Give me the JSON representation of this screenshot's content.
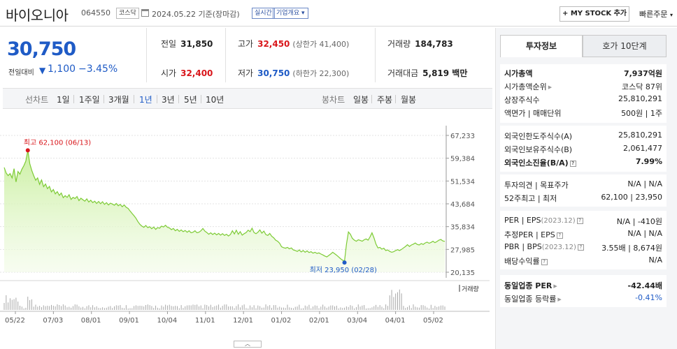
{
  "header": {
    "stock_name": "바이오니아",
    "stock_code": "064550",
    "market_badge": "코스닥",
    "date_text": "2024.05.22 기준(장마감)",
    "realtime_label": "실시간",
    "company_label": "기업개요",
    "mystock_label": "+ MY STOCK 추가",
    "quick_order_label": "빠른주문"
  },
  "price": {
    "current": "30,750",
    "change_label": "전일대비",
    "change_value": "1,100",
    "change_pct": "−3.45%"
  },
  "stats": {
    "prev_label": "전일",
    "prev_value": "31,850",
    "high_label": "고가",
    "high_value": "32,450",
    "upper_limit": "(상한가 41,400)",
    "volume_label": "거래량",
    "volume_value": "184,783",
    "open_label": "시가",
    "open_value": "32,400",
    "low_label": "저가",
    "low_value": "30,750",
    "lower_limit": "(하한가 22,300)",
    "amount_label": "거래대금",
    "amount_value": "5,819 백만"
  },
  "tabs": {
    "line_chart": "선차트",
    "periods": [
      "1일",
      "1주일",
      "3개월",
      "1년",
      "3년",
      "5년",
      "10년"
    ],
    "active_period": "1년",
    "candle_chart": "봉차트",
    "candle_periods": [
      "일봉",
      "주봉",
      "월봉"
    ]
  },
  "chart_data": {
    "type": "area",
    "y_ticks": [
      "67,233",
      "59,384",
      "51,534",
      "43,684",
      "35,834",
      "27,985",
      "20,135"
    ],
    "ylim": [
      20135,
      67233
    ],
    "x_ticks": [
      "05/22",
      "07/03",
      "08/01",
      "09/01",
      "10/04",
      "11/01",
      "12/01",
      "01/02",
      "02/01",
      "03/04",
      "04/01",
      "05/02"
    ],
    "high_annotation": "최고 62,100 (06/13)",
    "low_annotation": "최저 23,950 (02/28)",
    "volume_label": "거래량",
    "series": [
      {
        "values": [
          56200,
          54300,
          53400,
          54100,
          52600,
          55800,
          51200,
          54800,
          53900,
          55600,
          56800,
          58400,
          62100,
          57500,
          55200,
          53400,
          51800,
          52600,
          50400,
          51900,
          49600,
          50500,
          48900,
          49700,
          47800,
          48600,
          47100,
          47900,
          46600,
          47400,
          45800,
          46500,
          45900,
          46800,
          45200,
          45900,
          45500,
          46200,
          44800,
          45600,
          45100,
          44600,
          45400,
          44300,
          44900,
          44100,
          44600,
          43800,
          44500,
          43700,
          44400,
          43500,
          44100,
          43300,
          43900,
          43600,
          43200,
          43800,
          43000,
          43500,
          42700,
          43300,
          42500,
          42100,
          41200,
          40400,
          39600,
          38700,
          37500,
          36600,
          36000,
          35600,
          36200,
          35500,
          35800,
          35100,
          35700,
          34900,
          35500,
          35300,
          36000,
          35700,
          36300,
          35600,
          35400,
          34800,
          35200,
          34400,
          34900,
          34200,
          34700,
          34100,
          34500,
          33900,
          34400,
          33700,
          33900,
          34400,
          33700,
          33900,
          34400,
          35200,
          34300,
          33800,
          33200,
          33700,
          33100,
          33600,
          33000,
          33500,
          32900,
          33400,
          32800,
          33200,
          32600,
          33100,
          34400,
          33300,
          34600,
          33200,
          34100,
          32900,
          33400,
          33800,
          34600,
          34100,
          35300,
          33800,
          33400,
          33900,
          34700,
          33600,
          34300,
          33100,
          32800,
          33500,
          32500,
          32000,
          31200,
          30800,
          30100,
          28900,
          28600,
          28400,
          28700,
          28200,
          28500,
          27800,
          27600,
          27300,
          27800,
          27100,
          27600,
          27000,
          27500,
          26900,
          27200,
          26700,
          27000,
          26600,
          26800,
          26400,
          26100,
          25700,
          25400,
          25900,
          26400,
          27000,
          26500,
          26000,
          25400,
          24800,
          24300,
          23950,
          29800,
          34000,
          33200,
          31800,
          31200,
          30800,
          31300,
          31100,
          30800,
          31300,
          31600,
          31200,
          32300,
          33700,
          31900,
          29800,
          28500,
          28700,
          28100,
          28400,
          27600,
          27800,
          27300,
          27000,
          27200,
          27600,
          27900,
          27600,
          28000,
          28500,
          29000,
          29600,
          29000,
          29500,
          29800,
          30200,
          29700,
          29500,
          30000,
          29700,
          30200,
          30500,
          30100,
          30400,
          30800,
          30300,
          30700,
          31200,
          31400,
          30900,
          30750
        ]
      }
    ]
  },
  "side_panel": {
    "tab_info": "투자정보",
    "tab_quote": "호가 10단계",
    "market_cap_label": "시가총액",
    "market_cap_value": "7,937억원",
    "cap_rank_label": "시가총액순위",
    "cap_rank_value": "코스닥 87위",
    "shares_label": "상장주식수",
    "shares_value": "25,810,291",
    "par_label": "액면가 | 매매단위",
    "par_value": "500원 | 1주",
    "foreign_limit_label": "외국인한도주식수(A)",
    "foreign_limit_value": "25,810,291",
    "foreign_hold_label": "외국인보유주식수(B)",
    "foreign_hold_value": "2,061,477",
    "foreign_rate_label": "외국인소진율(B/A)",
    "foreign_rate_value": "7.99%",
    "opinion_label": "투자의견 | 목표주가",
    "opinion_value": "N/A | N/A",
    "week52_label": "52주최고 | 최저",
    "week52_value": "62,100 | 23,950",
    "per_label": "PER | EPS",
    "per_period": "(2023.12)",
    "per_value": "N/A | -410원",
    "est_per_label": "추정PER | EPS",
    "est_per_value": "N/A | N/A",
    "pbr_label": "PBR | BPS",
    "pbr_period": "(2023.12)",
    "pbr_value": "3.55배 | 8,674원",
    "dividend_label": "배당수익률",
    "dividend_value": "N/A",
    "industry_per_label": "동일업종 PER",
    "industry_per_value": "-42.44배",
    "industry_rate_label": "동일업종 등락률",
    "industry_rate_value": "-0.41%"
  }
}
